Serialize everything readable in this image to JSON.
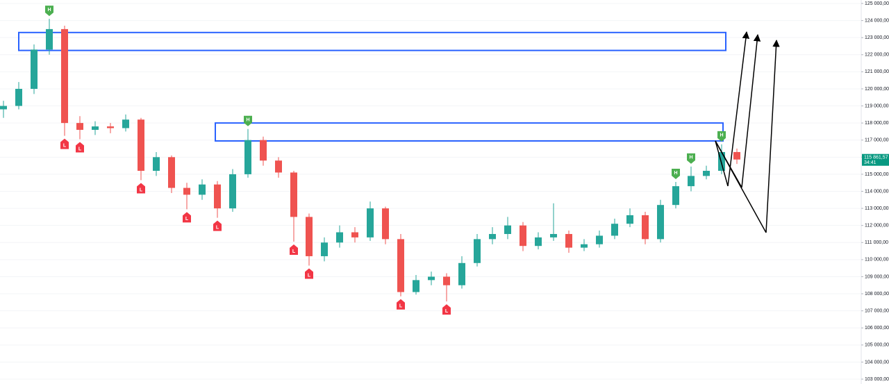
{
  "chart_data": {
    "type": "candlestick",
    "ylim": [
      103000,
      125000
    ],
    "yticks": [
      {
        "value": 125000,
        "label": "125 000,00"
      },
      {
        "value": 124000,
        "label": "124 000,00"
      },
      {
        "value": 123000,
        "label": "123 000,00"
      },
      {
        "value": 122000,
        "label": "122 000,00"
      },
      {
        "value": 121000,
        "label": "121 000,00"
      },
      {
        "value": 120000,
        "label": "120 000,00"
      },
      {
        "value": 119000,
        "label": "119 000,00"
      },
      {
        "value": 118000,
        "label": "118 000,00"
      },
      {
        "value": 117000,
        "label": "117 000,00"
      },
      {
        "value": 116000,
        "label": "116 000,00"
      },
      {
        "value": 115000,
        "label": "115 000,00"
      },
      {
        "value": 114000,
        "label": "114 000,00"
      },
      {
        "value": 113000,
        "label": "113 000,00"
      },
      {
        "value": 112000,
        "label": "112 000,00"
      },
      {
        "value": 111000,
        "label": "111 000,00"
      },
      {
        "value": 110000,
        "label": "110 000,00"
      },
      {
        "value": 109000,
        "label": "109 000,00"
      },
      {
        "value": 108000,
        "label": "108 000,00"
      },
      {
        "value": 107000,
        "label": "107 000,00"
      },
      {
        "value": 106000,
        "label": "106 000,00"
      },
      {
        "value": 105000,
        "label": "105 000,00"
      },
      {
        "value": 104000,
        "label": "104 000,00"
      },
      {
        "value": 103000,
        "label": "103 000,00"
      }
    ],
    "up_color": "#26a69a",
    "down_color": "#ef5350",
    "ohlc": [
      [
        118800,
        119300,
        118300,
        119000
      ],
      [
        119000,
        120400,
        118800,
        120000
      ],
      [
        120000,
        122600,
        119700,
        122300
      ],
      [
        122300,
        124100,
        122000,
        123500
      ],
      [
        123500,
        123700,
        117250,
        118000
      ],
      [
        118000,
        118400,
        117050,
        117600
      ],
      [
        117600,
        118100,
        117300,
        117800
      ],
      [
        117800,
        118000,
        117400,
        117700
      ],
      [
        117700,
        118500,
        117500,
        118200
      ],
      [
        118200,
        118300,
        114650,
        115200
      ],
      [
        115200,
        116300,
        114900,
        116000
      ],
      [
        116000,
        116100,
        113900,
        114200
      ],
      [
        114200,
        114500,
        112950,
        113800
      ],
      [
        113800,
        114700,
        113500,
        114400
      ],
      [
        114400,
        114600,
        112450,
        113000
      ],
      [
        113000,
        115300,
        112800,
        115000
      ],
      [
        115000,
        117650,
        114800,
        117000
      ],
      [
        117000,
        117200,
        115500,
        115800
      ],
      [
        115800,
        116000,
        114800,
        115100
      ],
      [
        115100,
        115200,
        111050,
        112500
      ],
      [
        112500,
        112700,
        109650,
        110200
      ],
      [
        110200,
        111300,
        109900,
        111000
      ],
      [
        111000,
        112000,
        110700,
        111600
      ],
      [
        111600,
        111900,
        111000,
        111300
      ],
      [
        111300,
        113400,
        111100,
        113000
      ],
      [
        113000,
        113100,
        110900,
        111200
      ],
      [
        111200,
        111500,
        107850,
        108100
      ],
      [
        108100,
        109100,
        107950,
        108800
      ],
      [
        108800,
        109300,
        108500,
        109000
      ],
      [
        109000,
        109200,
        107550,
        108500
      ],
      [
        108500,
        110200,
        108300,
        109800
      ],
      [
        109800,
        111500,
        109600,
        111200
      ],
      [
        111200,
        111900,
        110900,
        111500
      ],
      [
        111500,
        112500,
        111200,
        112000
      ],
      [
        112000,
        112200,
        110500,
        110800
      ],
      [
        110800,
        111600,
        110600,
        111300
      ],
      [
        111300,
        113300,
        111100,
        111500
      ],
      [
        111500,
        111700,
        110400,
        110700
      ],
      [
        110700,
        111200,
        110500,
        110900
      ],
      [
        110900,
        111700,
        110700,
        111400
      ],
      [
        111400,
        112400,
        111200,
        112100
      ],
      [
        112100,
        113000,
        111900,
        112600
      ],
      [
        112600,
        112800,
        110900,
        111200
      ],
      [
        111200,
        113500,
        111000,
        113200
      ],
      [
        113200,
        114550,
        113000,
        114300
      ],
      [
        114300,
        115450,
        114000,
        114900
      ],
      [
        114900,
        115500,
        114700,
        115200
      ],
      [
        115200,
        116750,
        115000,
        116300
      ],
      [
        116300,
        116500,
        115600,
        115861.57
      ]
    ],
    "markers": [
      {
        "label": "H",
        "price": 124100,
        "color": "#4caf50"
      },
      {
        "label": "L",
        "price": 117250,
        "color": "#f23645"
      },
      {
        "label": "L",
        "price": 117050,
        "color": "#f23645"
      },
      {
        "label": "L",
        "price": 114650,
        "color": "#f23645"
      },
      {
        "label": "L",
        "price": 112950,
        "color": "#f23645"
      },
      {
        "label": "L",
        "price": 112450,
        "color": "#f23645"
      },
      {
        "label": "H",
        "price": 117650,
        "color": "#4caf50"
      },
      {
        "label": "L",
        "price": 111050,
        "color": "#f23645"
      },
      {
        "label": "L",
        "price": 109650,
        "color": "#f23645"
      },
      {
        "label": "L",
        "price": 107850,
        "color": "#f23645"
      },
      {
        "label": "L",
        "price": 107550,
        "color": "#f23645"
      },
      {
        "label": "H",
        "price": 114550,
        "color": "#4caf50"
      },
      {
        "label": "H",
        "price": 115450,
        "color": "#4caf50"
      },
      {
        "label": "H",
        "price": 116750,
        "color": "#4caf50"
      }
    ],
    "zones": [
      {
        "top": 123300,
        "bottom": 122250,
        "color": "#2962ff"
      },
      {
        "top": 118000,
        "bottom": 116950,
        "color": "#2962ff"
      }
    ],
    "price_tag": {
      "price": {
        "value": 115861.57,
        "label": "115 861,57"
      },
      "timer": "34:41",
      "color": "#089981"
    }
  }
}
